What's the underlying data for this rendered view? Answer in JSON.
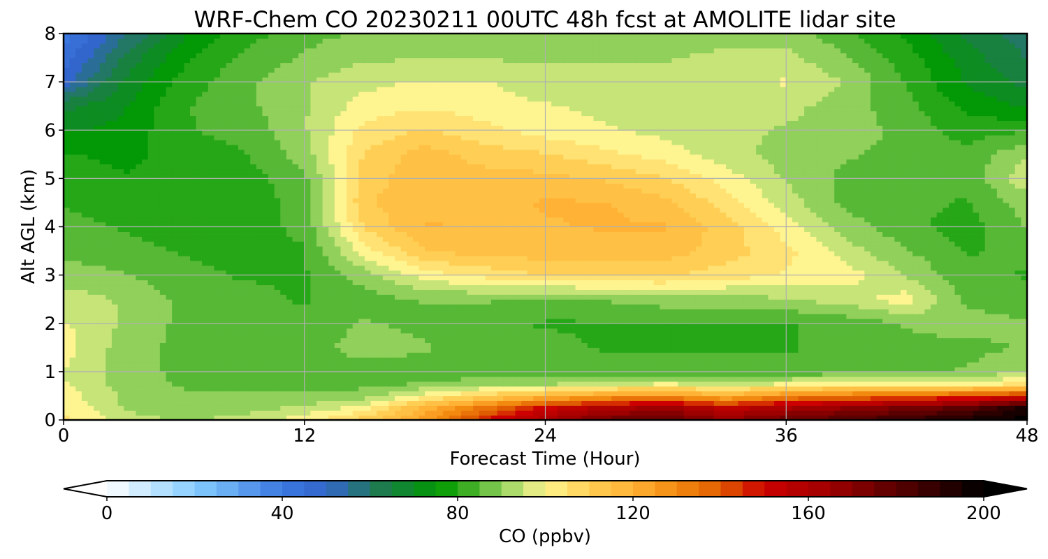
{
  "chart_data": {
    "type": "heatmap",
    "title": "WRF-Chem CO  20230211 00UTC 48h fcst at AMOLITE lidar site",
    "xlabel": "Forecast Time (Hour)",
    "ylabel": "Alt AGL (km)",
    "xlim": [
      0,
      48
    ],
    "ylim": [
      0,
      8
    ],
    "xticks": [
      0,
      12,
      24,
      36,
      48
    ],
    "yticks": [
      0,
      1,
      2,
      3,
      4,
      5,
      6,
      7,
      8
    ],
    "grid": true,
    "colorbar": {
      "label": "CO  (ppbv)",
      "orientation": "horizontal",
      "placement": "bottom",
      "range": [
        0,
        200
      ],
      "ticks": [
        0,
        40,
        80,
        120,
        160,
        200
      ],
      "extend": "both",
      "stops": [
        {
          "value": 0,
          "color": "#ffffff"
        },
        {
          "value": 20,
          "color": "#87ceff"
        },
        {
          "value": 40,
          "color": "#3a78e0"
        },
        {
          "value": 50,
          "color": "#3366cc"
        },
        {
          "value": 62,
          "color": "#1e7a50"
        },
        {
          "value": 76,
          "color": "#009a00"
        },
        {
          "value": 84,
          "color": "#4cb32e"
        },
        {
          "value": 92,
          "color": "#a6d96a"
        },
        {
          "value": 100,
          "color": "#fff590"
        },
        {
          "value": 110,
          "color": "#ffcf55"
        },
        {
          "value": 120,
          "color": "#ffb235"
        },
        {
          "value": 130,
          "color": "#f28a10"
        },
        {
          "value": 140,
          "color": "#e05c00"
        },
        {
          "value": 150,
          "color": "#cc0000"
        },
        {
          "value": 165,
          "color": "#9e0000"
        },
        {
          "value": 180,
          "color": "#5a0000"
        },
        {
          "value": 200,
          "color": "#000000"
        }
      ]
    },
    "field": {
      "x": [
        0,
        3,
        6,
        9,
        12,
        15,
        18,
        21,
        24,
        27,
        30,
        33,
        36,
        39,
        42,
        45,
        48
      ],
      "y": [
        0,
        0.25,
        0.5,
        0.75,
        1,
        1.5,
        2,
        2.5,
        3,
        3.5,
        4,
        4.5,
        5,
        5.5,
        6,
        6.5,
        7,
        7.5,
        8
      ],
      "z": [
        [
          104,
          95,
          92,
          95,
          100,
          110,
          125,
          148,
          162,
          175,
          178,
          168,
          176,
          182,
          188,
          195,
          200
        ],
        [
          102,
          92,
          88,
          90,
          94,
          100,
          120,
          135,
          150,
          160,
          165,
          155,
          162,
          168,
          174,
          180,
          195
        ],
        [
          100,
          92,
          88,
          88,
          88,
          90,
          100,
          110,
          118,
          125,
          128,
          120,
          130,
          134,
          138,
          142,
          148
        ],
        [
          98,
          90,
          87,
          86,
          86,
          86,
          88,
          90,
          92,
          95,
          98,
          95,
          98,
          100,
          100,
          100,
          104
        ],
        [
          97,
          90,
          86,
          85,
          85,
          85,
          85,
          85,
          85,
          85,
          84,
          84,
          84,
          85,
          86,
          88,
          92
        ],
        [
          100,
          90,
          86,
          85,
          85,
          90,
          88,
          85,
          84,
          82,
          82,
          82,
          82,
          84,
          86,
          86,
          88
        ],
        [
          98,
          92,
          86,
          85,
          84,
          88,
          86,
          84,
          82,
          82,
          82,
          82,
          82,
          84,
          88,
          90,
          88
        ],
        [
          95,
          92,
          86,
          84,
          82,
          85,
          88,
          88,
          86,
          88,
          90,
          90,
          92,
          95,
          100,
          86,
          84
        ],
        [
          90,
          88,
          84,
          82,
          82,
          90,
          100,
          104,
          108,
          108,
          108,
          105,
          102,
          100,
          92,
          84,
          82
        ],
        [
          86,
          84,
          82,
          80,
          82,
          100,
          112,
          115,
          115,
          115,
          115,
          110,
          104,
          95,
          88,
          82,
          84
        ],
        [
          84,
          82,
          80,
          80,
          84,
          108,
          118,
          117,
          117,
          118,
          118,
          110,
          100,
          90,
          84,
          80,
          88
        ],
        [
          82,
          80,
          78,
          80,
          84,
          112,
          116,
          116,
          118,
          118,
          114,
          105,
          95,
          86,
          84,
          82,
          90
        ],
        [
          80,
          78,
          78,
          80,
          86,
          110,
          116,
          115,
          114,
          112,
          108,
          100,
          92,
          86,
          85,
          84,
          96
        ],
        [
          78,
          76,
          80,
          82,
          90,
          108,
          115,
          110,
          108,
          104,
          100,
          95,
          90,
          88,
          86,
          84,
          92
        ],
        [
          72,
          74,
          82,
          84,
          92,
          104,
          108,
          104,
          100,
          98,
          96,
          94,
          92,
          90,
          86,
          80,
          82
        ],
        [
          66,
          72,
          82,
          86,
          92,
          100,
          102,
          100,
          98,
          96,
          94,
          94,
          94,
          90,
          84,
          76,
          72
        ],
        [
          50,
          68,
          80,
          86,
          92,
          96,
          98,
          98,
          94,
          94,
          94,
          96,
          98,
          92,
          82,
          72,
          66
        ],
        [
          44,
          64,
          76,
          84,
          88,
          92,
          92,
          92,
          92,
          92,
          92,
          94,
          94,
          88,
          80,
          70,
          62
        ],
        [
          40,
          56,
          72,
          80,
          86,
          88,
          88,
          90,
          90,
          90,
          90,
          90,
          90,
          84,
          76,
          66,
          60
        ]
      ]
    }
  }
}
